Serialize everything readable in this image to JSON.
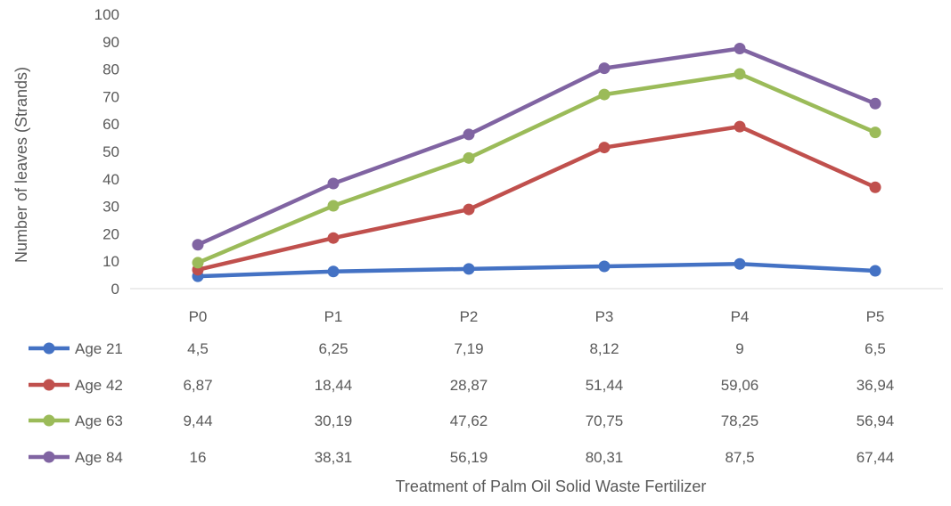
{
  "chart_data": {
    "type": "line",
    "ylabel": "Number of leaves (Strands)",
    "xlabel": "Treatment of Palm Oil Solid Waste Fertilizer",
    "categories": [
      "P0",
      "P1",
      "P2",
      "P3",
      "P4",
      "P5"
    ],
    "ylim": [
      0,
      100
    ],
    "yticks": [
      0,
      10,
      20,
      30,
      40,
      50,
      60,
      70,
      80,
      90,
      100
    ],
    "grid": false,
    "legend": "data table below plot",
    "series": [
      {
        "name": "Age 21",
        "color": "#4472c4",
        "values": [
          4.5,
          6.25,
          7.19,
          8.12,
          9,
          6.5
        ],
        "labels": [
          "4,5",
          "6,25",
          "7,19",
          "8,12",
          "9",
          "6,5"
        ]
      },
      {
        "name": "Age 42",
        "color": "#c0504d",
        "values": [
          6.87,
          18.44,
          28.87,
          51.44,
          59.06,
          36.94
        ],
        "labels": [
          "6,87",
          "18,44",
          "28,87",
          "51,44",
          "59,06",
          "36,94"
        ]
      },
      {
        "name": "Age 63",
        "color": "#9bbb59",
        "values": [
          9.44,
          30.19,
          47.62,
          70.75,
          78.25,
          56.94
        ],
        "labels": [
          "9,44",
          "30,19",
          "47,62",
          "70,75",
          "78,25",
          "56,94"
        ]
      },
      {
        "name": "Age 84",
        "color": "#8064a2",
        "values": [
          16,
          38.31,
          56.19,
          80.31,
          87.5,
          67.44
        ],
        "labels": [
          "16",
          "38,31",
          "56,19",
          "80,31",
          "87,5",
          "67,44"
        ]
      }
    ]
  }
}
